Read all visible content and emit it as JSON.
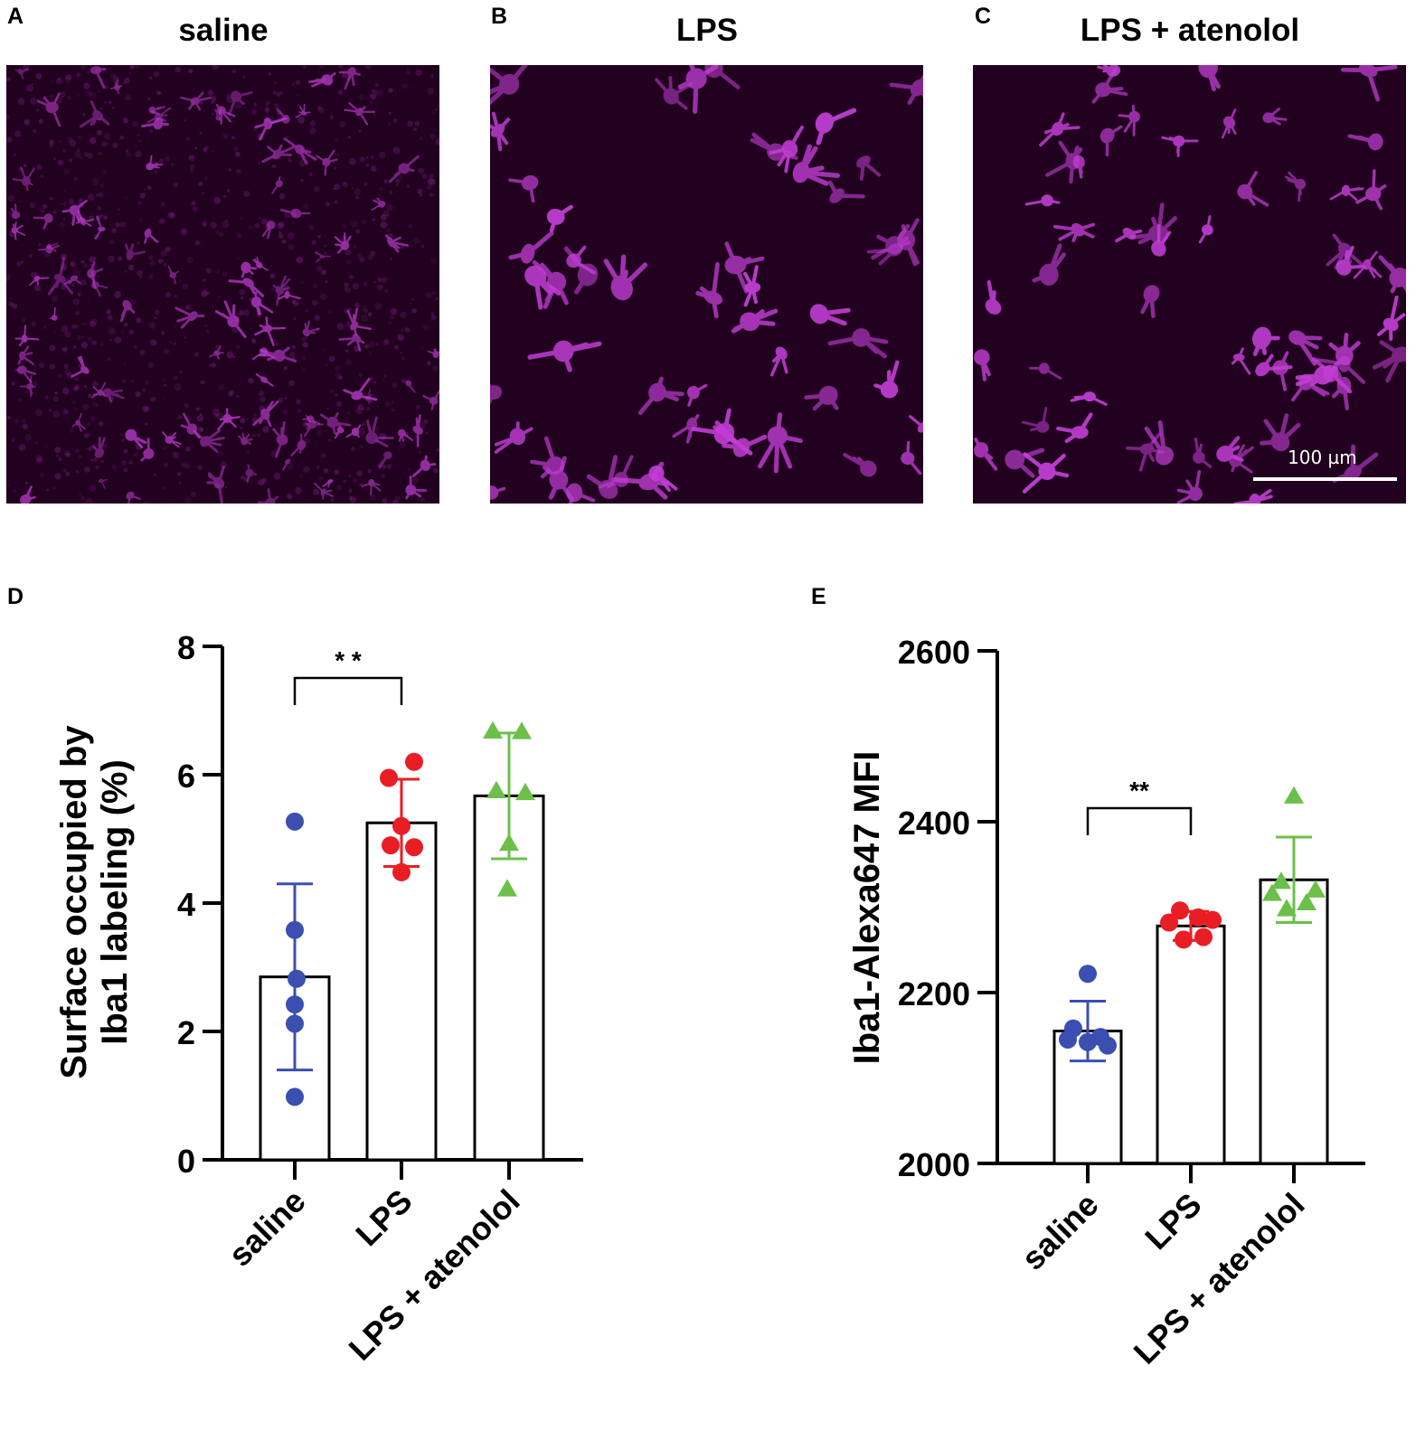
{
  "panels": {
    "A": {
      "letter": "A",
      "title": "saline"
    },
    "B": {
      "letter": "B",
      "title": "LPS"
    },
    "C": {
      "letter": "C",
      "title": "LPS + atenolol",
      "scale_bar_label": "100 µm"
    },
    "D": {
      "letter": "D"
    },
    "E": {
      "letter": "E"
    }
  },
  "colors": {
    "saline": "#3a4fb0",
    "LPS": "#e81e24",
    "LPS + atenolol": "#6cc04a",
    "micrograph_bg": "#22001f",
    "cell": "#c23fd6"
  },
  "chart_data": [
    {
      "id": "D",
      "type": "bar",
      "categories": [
        "saline",
        "LPS",
        "LPS + atenolol"
      ],
      "values": [
        2.85,
        5.25,
        5.67
      ],
      "error_sd": [
        1.45,
        0.68,
        0.98
      ],
      "points": [
        [
          5.27,
          3.58,
          2.82,
          2.42,
          2.12,
          0.98
        ],
        [
          6.2,
          5.95,
          5.2,
          4.9,
          4.87,
          4.48
        ],
        [
          6.68,
          6.67,
          5.75,
          5.72,
          4.93,
          4.22
        ]
      ],
      "markers": [
        "circle",
        "circle",
        "triangle"
      ],
      "ylabel": "Surface occupied by Iba1 labeling (%)",
      "ylim": [
        0,
        8
      ],
      "yticks": [
        0,
        2,
        4,
        6,
        8
      ],
      "significance": {
        "from": "saline",
        "to": "LPS",
        "label": "* *"
      }
    },
    {
      "id": "E",
      "type": "bar",
      "categories": [
        "saline",
        "LPS",
        "LPS + atenolol"
      ],
      "values": [
        2155,
        2278,
        2332
      ],
      "error_sd": [
        35,
        17,
        50
      ],
      "points": [
        [
          2222,
          2158,
          2148,
          2145,
          2142,
          2138
        ],
        [
          2296,
          2288,
          2285,
          2282,
          2265,
          2262
        ],
        [
          2430,
          2330,
          2320,
          2316,
          2305,
          2298
        ]
      ],
      "markers": [
        "circle",
        "circle",
        "triangle"
      ],
      "ylabel": "Iba1-Alexa647 MFI",
      "ylim": [
        2000,
        2600
      ],
      "yticks": [
        2000,
        2200,
        2400,
        2600
      ],
      "significance": {
        "from": "saline",
        "to": "LPS",
        "label": "**"
      }
    }
  ]
}
